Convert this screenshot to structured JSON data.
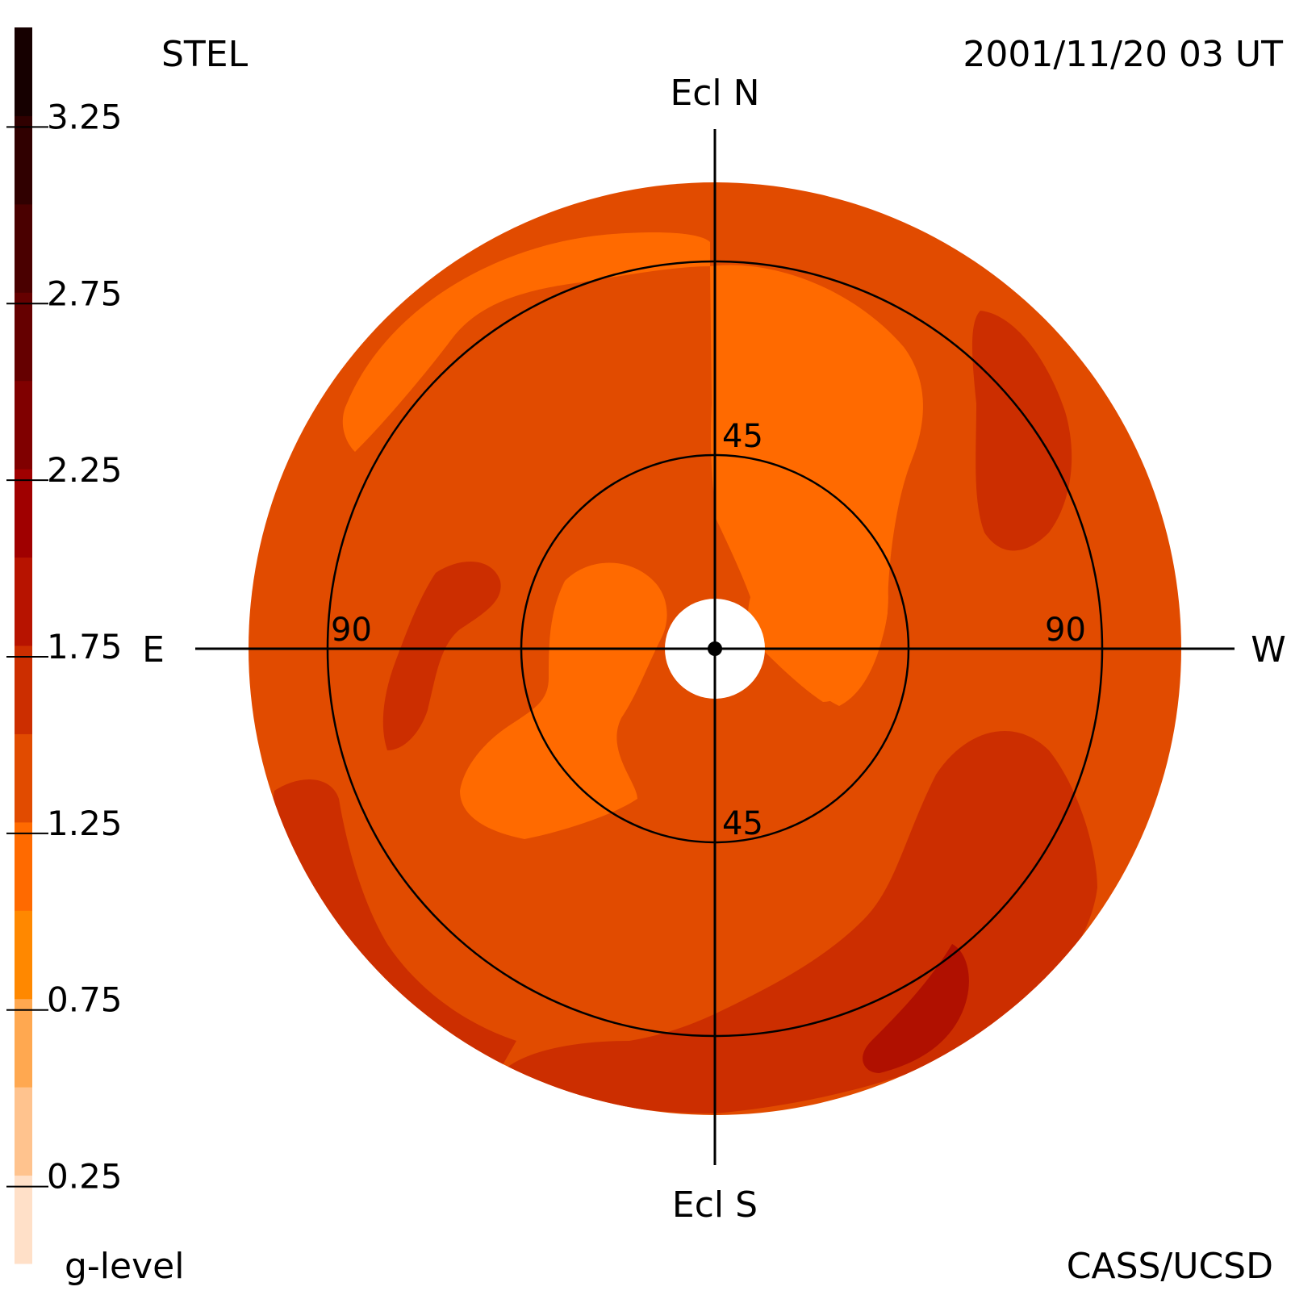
{
  "header": {
    "instrument": "STEL",
    "timestamp": "2001/11/20 03 UT"
  },
  "footer": {
    "colorbar_label": "g-level",
    "credit": "CASS/UCSD"
  },
  "direction_labels": {
    "north": "Ecl N",
    "south": "Ecl S",
    "east": "E",
    "west": "W"
  },
  "ring_labels": {
    "inner_north": "45",
    "inner_south": "45",
    "outer_east": "90",
    "outer_west": "90"
  },
  "colors": {
    "field_base": "#E14B00",
    "light": "#FF6A00",
    "dark": "#CC2E00",
    "darker": "#B01000",
    "lines": "#000000",
    "background": "#ffffff"
  },
  "chart_data": {
    "type": "heatmap",
    "projection": "polar sky map (ecliptic), elongation from Sun",
    "colorbar": {
      "label": "g-level",
      "range": [
        0,
        3.5
      ],
      "tick_labels": [
        "3.25",
        "2.75",
        "2.25",
        "1.75",
        "1.25",
        "0.75",
        "0.25"
      ],
      "tick_values": [
        3.25,
        2.75,
        2.25,
        1.75,
        1.25,
        0.75,
        0.25
      ],
      "bins": [
        {
          "lo": 0.0,
          "hi": 0.25,
          "color": "#FFE0C8"
        },
        {
          "lo": 0.25,
          "hi": 0.5,
          "color": "#FFC38E"
        },
        {
          "lo": 0.5,
          "hi": 0.75,
          "color": "#FFA850"
        },
        {
          "lo": 0.75,
          "hi": 1.0,
          "color": "#FF8800"
        },
        {
          "lo": 1.0,
          "hi": 1.25,
          "color": "#FF6A00"
        },
        {
          "lo": 1.25,
          "hi": 1.5,
          "color": "#E14B00"
        },
        {
          "lo": 1.5,
          "hi": 1.75,
          "color": "#CC2E00"
        },
        {
          "lo": 1.75,
          "hi": 2.0,
          "color": "#B71300"
        },
        {
          "lo": 2.0,
          "hi": 2.25,
          "color": "#A00000"
        },
        {
          "lo": 2.25,
          "hi": 2.5,
          "color": "#800000"
        },
        {
          "lo": 2.5,
          "hi": 2.75,
          "color": "#650000"
        },
        {
          "lo": 2.75,
          "hi": 3.0,
          "color": "#4A0000"
        },
        {
          "lo": 3.0,
          "hi": 3.25,
          "color": "#300000"
        },
        {
          "lo": 3.25,
          "hi": 3.5,
          "color": "#160000"
        }
      ]
    },
    "elongation_circles_deg": [
      45,
      90
    ],
    "regions": [
      {
        "level": 1.25,
        "color": "#FF6A00",
        "description": "upper-left arc between rings"
      },
      {
        "level": 1.25,
        "color": "#FF6A00",
        "description": "upper-right lobe near north axis"
      },
      {
        "level": 1.25,
        "color": "#FF6A00",
        "description": "inner-ring lobe around Sun"
      },
      {
        "level": 1.25,
        "color": "#FF6A00",
        "description": "lower-left lobe inside inner ring"
      },
      {
        "level": 1.6,
        "color": "#CC2E00",
        "description": "upper-right streak"
      },
      {
        "level": 1.6,
        "color": "#CC2E00",
        "description": "left streak near 90 E"
      },
      {
        "level": 1.6,
        "color": "#CC2E00",
        "description": "lower-left edge band"
      },
      {
        "level": 1.6,
        "color": "#CC2E00",
        "description": "lower-right arc band"
      },
      {
        "level": 1.85,
        "color": "#B01000",
        "description": "lower-right darker streak"
      }
    ]
  }
}
